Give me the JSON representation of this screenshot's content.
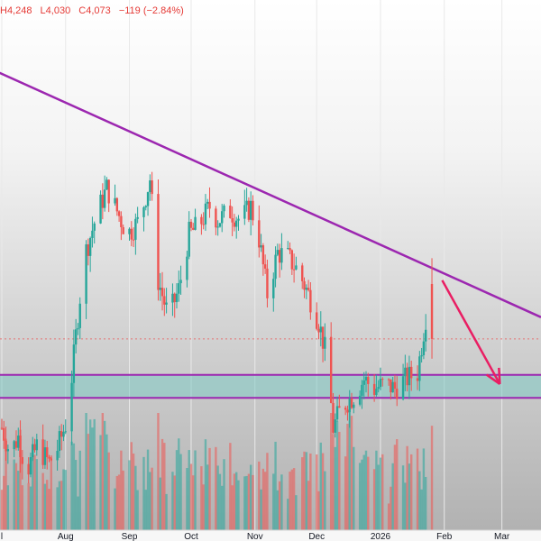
{
  "ohlc": {
    "high": "H4,248",
    "low": "L4,030",
    "close": "C4,073",
    "change": "−119 (−2.84%)"
  },
  "colors": {
    "up": "#26a69a",
    "down": "#ef5350",
    "trendline": "#9c27b0",
    "support_fill": "#80cbc4",
    "arrow": "#e91e63",
    "price_line": "#e57373",
    "background_gradient_bottom": "#b0b0b0",
    "grid": "#e9e9e9",
    "axis_text": "#131722"
  },
  "chart_data": {
    "type": "candlestick",
    "x_axis": {
      "start_date": "2025-07-01",
      "end_date": "2026-03-20",
      "tick_labels": [
        {
          "date": "2025-07-01",
          "label": "l"
        },
        {
          "date": "2025-08-01",
          "label": "Aug"
        },
        {
          "date": "2025-09-01",
          "label": "Sep"
        },
        {
          "date": "2025-10-01",
          "label": "Oct"
        },
        {
          "date": "2025-11-01",
          "label": "Nov"
        },
        {
          "date": "2025-12-01",
          "label": "Dec"
        },
        {
          "date": "2026-01-01",
          "label": "2026"
        },
        {
          "date": "2026-02-01",
          "label": "Feb"
        },
        {
          "date": "2026-03-01",
          "label": "Mar"
        }
      ]
    },
    "y_range": [
      3750,
      4720
    ],
    "current_price": 4073,
    "trendline": {
      "start": [
        "2025-06-25",
        4660
      ],
      "end": [
        "2026-03-20",
        4120
      ]
    },
    "support_zone": [
      3945,
      3995
    ],
    "arrow": {
      "from": [
        "2026-01-31",
        4200
      ],
      "to": [
        "2026-02-28",
        3975
      ]
    },
    "anchors": [
      [
        "2025-07-01",
        3880
      ],
      [
        "2025-07-05",
        3825
      ],
      [
        "2025-07-09",
        3860
      ],
      [
        "2025-07-13",
        3785
      ],
      [
        "2025-07-18",
        3840
      ],
      [
        "2025-07-24",
        3805
      ],
      [
        "2025-07-28",
        3835
      ],
      [
        "2025-08-02",
        3900
      ],
      [
        "2025-08-06",
        4080
      ],
      [
        "2025-08-10",
        4250
      ],
      [
        "2025-08-16",
        4340
      ],
      [
        "2025-08-21",
        4400
      ],
      [
        "2025-08-25",
        4360
      ],
      [
        "2025-08-31",
        4300
      ],
      [
        "2025-09-06",
        4330
      ],
      [
        "2025-09-11",
        4420
      ],
      [
        "2025-09-15",
        4200
      ],
      [
        "2025-09-20",
        4120
      ],
      [
        "2025-09-25",
        4180
      ],
      [
        "2025-09-30",
        4300
      ],
      [
        "2025-10-05",
        4320
      ],
      [
        "2025-10-10",
        4360
      ],
      [
        "2025-10-14",
        4330
      ],
      [
        "2025-10-20",
        4350
      ],
      [
        "2025-10-25",
        4330
      ],
      [
        "2025-10-30",
        4360
      ],
      [
        "2025-11-03",
        4290
      ],
      [
        "2025-11-07",
        4170
      ],
      [
        "2025-11-12",
        4260
      ],
      [
        "2025-11-17",
        4250
      ],
      [
        "2025-11-22",
        4220
      ],
      [
        "2025-11-27",
        4170
      ],
      [
        "2025-12-02",
        4110
      ],
      [
        "2025-12-06",
        4030
      ],
      [
        "2025-12-09",
        3880
      ],
      [
        "2025-12-13",
        3925
      ],
      [
        "2025-12-19",
        3950
      ],
      [
        "2025-12-24",
        3985
      ],
      [
        "2025-12-29",
        3965
      ],
      [
        "2026-01-03",
        3975
      ],
      [
        "2026-01-08",
        3965
      ],
      [
        "2026-01-13",
        3985
      ],
      [
        "2026-01-19",
        4000
      ],
      [
        "2026-01-23",
        4120
      ],
      [
        "2026-01-26",
        4073
      ]
    ],
    "ohlc_last": {
      "high": 4248,
      "low": 4030,
      "close": 4073,
      "change": -119,
      "change_pct": -2.84
    }
  }
}
